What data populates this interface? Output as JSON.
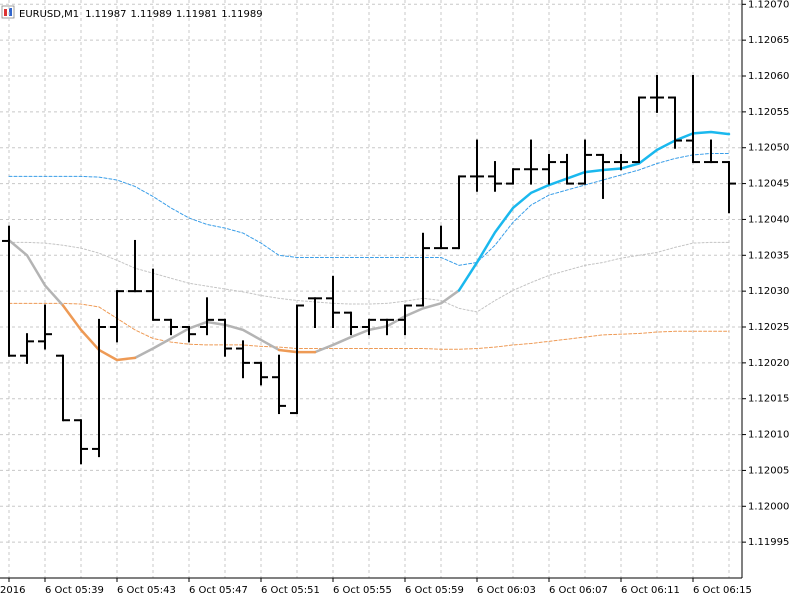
{
  "chart_data": {
    "type": "ohlc",
    "title": "EURUSD,M1",
    "title_values": [
      1.11987,
      1.11989,
      1.11981,
      1.11989
    ],
    "categories": [
      "2016",
      null,
      "6 Oct 05:39",
      null,
      null,
      null,
      "6 Oct 05:43",
      null,
      null,
      null,
      "6 Oct 05:47",
      null,
      null,
      null,
      "6 Oct 05:51",
      null,
      null,
      null,
      "6 Oct 05:55",
      null,
      null,
      null,
      "6 Oct 05:59",
      null,
      null,
      null,
      "6 Oct 06:03",
      null,
      null,
      null,
      "6 Oct 06:07",
      null,
      null,
      null,
      "6 Oct 06:11",
      null,
      null,
      null,
      "6 Oct 06:15",
      null,
      null
    ],
    "open": [
      1.12037,
      1.12021,
      1.12023,
      1.12021,
      1.12012,
      1.12008,
      1.12025,
      1.1203,
      1.1203,
      1.12026,
      1.12025,
      1.12025,
      1.12026,
      1.12022,
      1.1202,
      1.12018,
      1.12013,
      1.12029,
      1.12029,
      1.12027,
      1.12025,
      1.12026,
      1.12026,
      1.12028,
      1.12036,
      1.12036,
      1.12046,
      1.12046,
      1.12045,
      1.12047,
      1.12047,
      1.12048,
      1.12045,
      1.12049,
      1.12048,
      1.12048,
      1.12057,
      1.12057,
      1.12051,
      1.12048,
      1.12048
    ],
    "high": [
      1.12039,
      1.12024,
      1.12028,
      1.12021,
      1.12012,
      1.12026,
      1.1203,
      1.12037,
      1.12033,
      1.12026,
      1.12025,
      1.12029,
      1.12026,
      1.12023,
      1.1202,
      1.12021,
      1.12028,
      1.12029,
      1.12032,
      1.12027,
      1.12026,
      1.12026,
      1.12028,
      1.12038,
      1.12039,
      1.12046,
      1.12051,
      1.12048,
      1.12047,
      1.12051,
      1.12049,
      1.12049,
      1.12051,
      1.12049,
      1.12049,
      1.12057,
      1.1206,
      1.12057,
      1.1206,
      1.12051,
      1.12048
    ],
    "low": [
      1.12021,
      1.1202,
      1.12022,
      1.12012,
      1.12006,
      1.12007,
      1.12023,
      1.1203,
      1.12026,
      1.12024,
      1.12023,
      1.12024,
      1.12021,
      1.12018,
      1.12017,
      1.12013,
      1.12013,
      1.12025,
      1.12025,
      1.12024,
      1.12024,
      1.12024,
      1.12024,
      1.12028,
      1.12036,
      1.12036,
      1.12044,
      1.12044,
      1.12045,
      1.12045,
      1.12045,
      1.12045,
      1.12045,
      1.12043,
      1.12047,
      1.12048,
      1.12055,
      1.1205,
      1.12048,
      1.12048,
      1.12041
    ],
    "close": [
      1.12021,
      1.12023,
      1.12024,
      1.12012,
      1.12008,
      1.12025,
      1.1203,
      1.1203,
      1.12026,
      1.12025,
      1.12024,
      1.12026,
      1.12022,
      1.1202,
      1.12018,
      1.12014,
      1.12028,
      1.12029,
      1.12027,
      1.12025,
      1.12026,
      1.12026,
      1.12028,
      1.12036,
      1.12036,
      1.12046,
      1.12046,
      1.12045,
      1.12047,
      1.12047,
      1.12048,
      1.12045,
      1.12049,
      1.12048,
      1.12048,
      1.12057,
      1.12057,
      1.12051,
      1.12048,
      1.12048,
      1.12045
    ],
    "color": "#000000",
    "series": [
      {
        "color": "#ee9a55",
        "width": 1,
        "dash": "3,2",
        "values": [
          1.120283,
          1.120283,
          1.120283,
          1.120283,
          1.120282,
          1.120278,
          1.120262,
          1.120246,
          1.120234,
          1.120229,
          1.120226,
          1.120225,
          1.120225,
          1.120225,
          1.120223,
          1.120222,
          1.12022,
          1.12022,
          1.12022,
          1.12022,
          1.12022,
          1.12022,
          1.12022,
          1.12022,
          1.120219,
          1.120219,
          1.12022,
          1.120222,
          1.120225,
          1.120227,
          1.12023,
          1.120233,
          1.120236,
          1.120239,
          1.12024,
          1.120241,
          1.120243,
          1.120244,
          1.120244,
          1.120244,
          1.120244
        ]
      },
      {
        "color": "#c4c4c4",
        "width": 1,
        "dash": "2,2",
        "values": [
          1.120368,
          1.120368,
          1.120367,
          1.120364,
          1.12036,
          1.120353,
          1.120343,
          1.120332,
          1.120325,
          1.120318,
          1.120311,
          1.120307,
          1.120303,
          1.120299,
          1.120294,
          1.12029,
          1.120287,
          1.120285,
          1.120283,
          1.120282,
          1.120282,
          1.120283,
          1.120286,
          1.12029,
          1.120287,
          1.120276,
          1.120271,
          1.120287,
          1.120301,
          1.120312,
          1.120322,
          1.120329,
          1.120336,
          1.12034,
          1.120346,
          1.12035,
          1.120354,
          1.120361,
          1.120367,
          1.120368,
          1.120368
        ]
      },
      {
        "color": "#3a9ee8",
        "width": 1,
        "dash": "3,2",
        "values": [
          1.12046,
          1.12046,
          1.12046,
          1.12046,
          1.12046,
          1.120459,
          1.120455,
          1.120446,
          1.120432,
          1.120416,
          1.120402,
          1.120393,
          1.120388,
          1.120381,
          1.120367,
          1.12035,
          1.120347,
          1.120347,
          1.120347,
          1.120347,
          1.120347,
          1.120347,
          1.120347,
          1.120347,
          1.120347,
          1.120336,
          1.12034,
          1.120364,
          1.120396,
          1.12042,
          1.120434,
          1.120441,
          1.120448,
          1.120455,
          1.120462,
          1.120469,
          1.120478,
          1.120485,
          1.12049,
          1.120492,
          1.120492
        ]
      },
      {
        "color": "#b4b4b4",
        "width": 2.5,
        "values": [
          1.120371,
          1.12035,
          1.120308,
          1.12028,
          null,
          null,
          null,
          1.120207,
          1.12022,
          1.120234,
          1.120248,
          1.120257,
          1.120253,
          1.120246,
          1.120232,
          1.120218,
          null,
          1.120215,
          1.120225,
          1.120236,
          1.120246,
          1.120251,
          1.120265,
          1.120276,
          1.120283,
          1.120301,
          null,
          null,
          null,
          null,
          null,
          null,
          null,
          null,
          null,
          null,
          null,
          null,
          null,
          null,
          null
        ]
      },
      {
        "color": "#ee9a55",
        "width": 2.5,
        "values": [
          null,
          null,
          null,
          1.12028,
          1.120246,
          1.120218,
          1.120204,
          1.120207,
          null,
          null,
          null,
          null,
          null,
          null,
          null,
          1.120218,
          1.120215,
          1.120215,
          null,
          null,
          null,
          null,
          null,
          null,
          null,
          null,
          null,
          null,
          null,
          null,
          null,
          null,
          null,
          null,
          null,
          null,
          null,
          null,
          null,
          null,
          null
        ]
      },
      {
        "color": "#1ab8ee",
        "width": 2.5,
        "values": [
          null,
          null,
          null,
          null,
          null,
          null,
          null,
          null,
          null,
          null,
          null,
          null,
          null,
          null,
          null,
          null,
          null,
          null,
          null,
          null,
          null,
          null,
          null,
          null,
          null,
          1.120301,
          1.12034,
          1.120382,
          1.120416,
          1.120437,
          1.120448,
          1.120457,
          1.120466,
          1.120469,
          1.120471,
          1.120478,
          1.120497,
          1.12051,
          1.12052,
          1.120522,
          1.120519
        ]
      }
    ],
    "ylim": [
      1.1199,
      1.120706
    ],
    "yticks": [
      {
        "value": 1.1207,
        "label": "1.12070"
      },
      1.12065,
      {
        "value": 1.1206,
        "label": "1.12060"
      },
      1.12055,
      {
        "value": 1.1205,
        "label": "1.12050"
      },
      1.12045,
      {
        "value": 1.1204,
        "label": "1.12040"
      },
      1.12035,
      {
        "value": 1.1203,
        "label": "1.12030"
      },
      1.12025,
      {
        "value": 1.1202,
        "label": "1.12020"
      },
      1.12015,
      {
        "value": 1.1201,
        "label": "1.12010"
      },
      1.12005,
      {
        "value": 1.12,
        "label": "1.12000"
      },
      1.11995
    ],
    "grid": true
  }
}
